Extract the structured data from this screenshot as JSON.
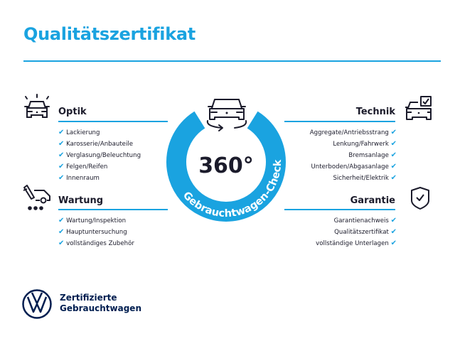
{
  "title": "Qualitätszertifikat",
  "colors": {
    "accent": "#1aa3e0",
    "text": "#1b1b2b",
    "logo": "#001e50"
  },
  "center": {
    "big": "360°",
    "ring_text": "Gebrauchtwagen-Check",
    "icon": "car-rotate-icon"
  },
  "sections": {
    "optik": {
      "heading": "Optik",
      "icon": "car-lights-icon",
      "items": [
        "Lackierung",
        "Karosserie/Anbauteile",
        "Verglasung/Beleuchtung",
        "Felgen/Reifen",
        "Innenraum"
      ]
    },
    "wartung": {
      "heading": "Wartung",
      "icon": "service-tools-icon",
      "items": [
        "Wartung/Inspektion",
        "Hauptuntersuchung",
        "vollständiges Zubehör"
      ]
    },
    "technik": {
      "heading": "Technik",
      "icon": "car-check-icon",
      "items": [
        "Aggregate/Antriebsstrang",
        "Lenkung/Fahrwerk",
        "Bremsanlage",
        "Unterboden/Abgasanlage",
        "Sicherheit/Elektrik"
      ]
    },
    "garantie": {
      "heading": "Garantie",
      "icon": "shield-check-icon",
      "items": [
        "Garantienachweis",
        "Qualitätszertifikat",
        "vollständige Unterlagen"
      ]
    }
  },
  "check_glyph": "✔",
  "footer": {
    "line1": "Zertifizierte",
    "line2": "Gebrauchtwagen"
  }
}
